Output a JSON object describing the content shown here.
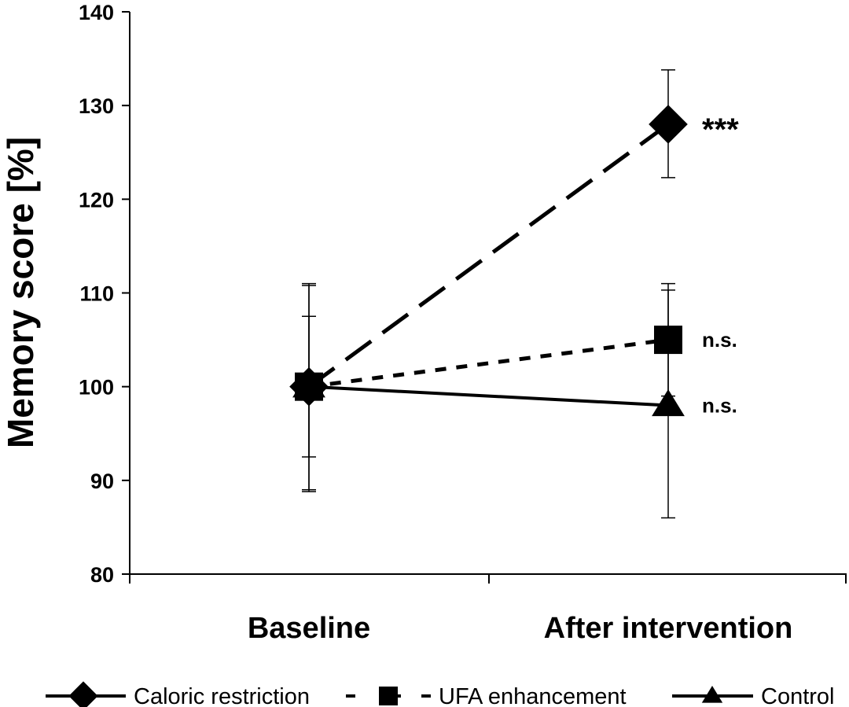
{
  "chart_data": {
    "type": "line",
    "title": "",
    "xlabel": "",
    "ylabel": "Memory score [%]",
    "categories": [
      "Baseline",
      "After intervention"
    ],
    "ylim": [
      80,
      140
    ],
    "yticks": [
      80,
      90,
      100,
      110,
      120,
      130,
      140
    ],
    "grid": false,
    "legend_position": "bottom",
    "series": [
      {
        "name": "Caloric restriction",
        "values": [
          100,
          128
        ],
        "error_low": [
          92.5,
          122.3
        ],
        "error_high": [
          107.5,
          133.8
        ],
        "marker": "diamond",
        "line_style": "long-dash",
        "annotation": "***"
      },
      {
        "name": "UFA enhancement",
        "values": [
          100,
          105
        ],
        "error_low": [
          89,
          99
        ],
        "error_high": [
          111,
          111
        ],
        "marker": "square",
        "line_style": "short-dash",
        "annotation": "n.s."
      },
      {
        "name": "Control",
        "values": [
          100,
          98
        ],
        "error_low": [
          88.8,
          86
        ],
        "error_high": [
          110.8,
          110.3
        ],
        "marker": "triangle",
        "line_style": "solid",
        "annotation": "n.s."
      }
    ],
    "colors": {
      "line": "#000000",
      "background": "#ffffff"
    }
  }
}
